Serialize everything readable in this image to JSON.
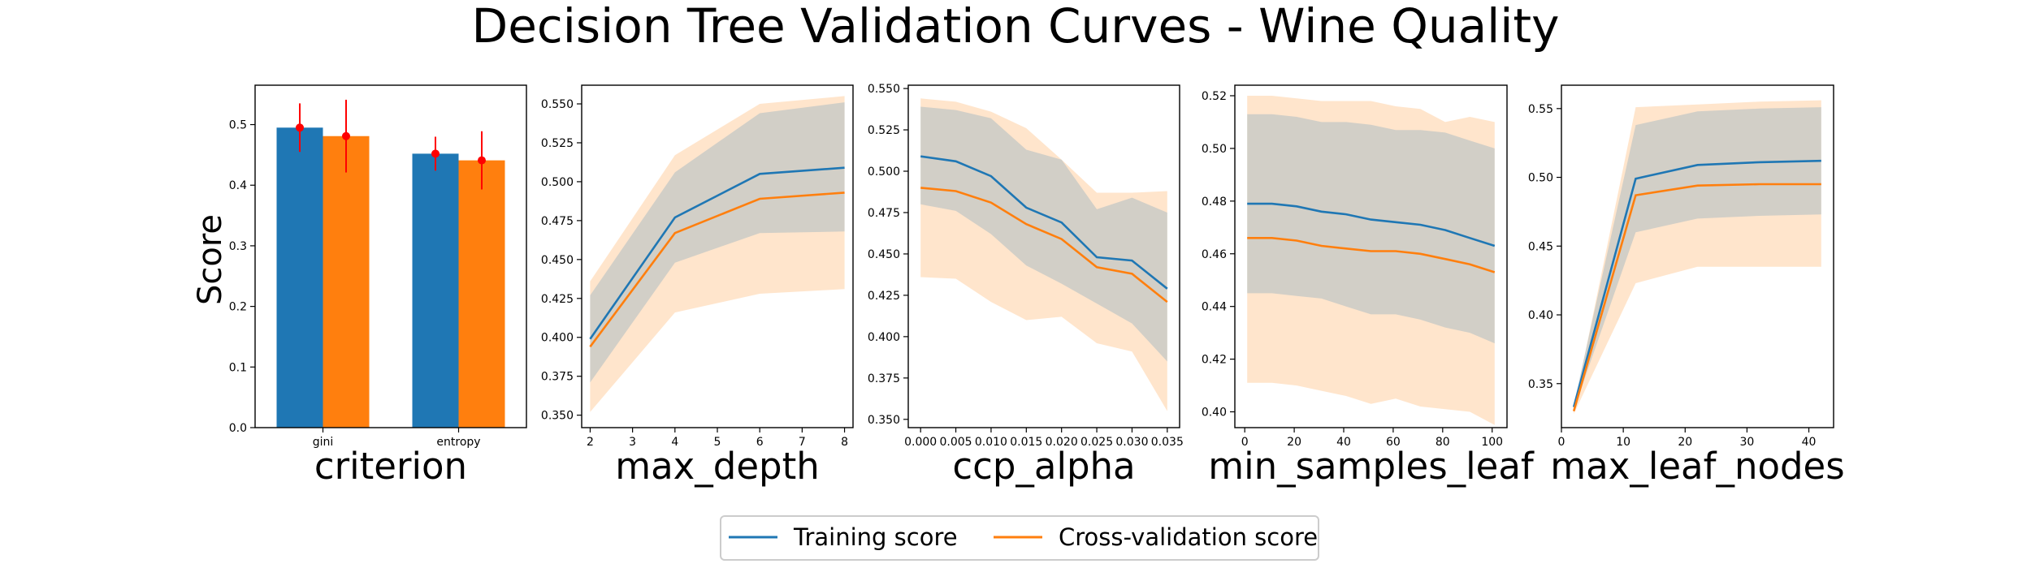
{
  "title": "Decision Tree Validation Curves - Wine Quality",
  "ylabel": "Score",
  "colors": {
    "train": "#1f77b4",
    "cv": "#ff7f0e",
    "train_band": "#1f77b4",
    "cv_band": "#ffbf7f",
    "error": "#ff0000"
  },
  "legend": {
    "train_label": "Training score",
    "cv_label": "Cross-validation score"
  },
  "chart_data": [
    {
      "type": "bar",
      "xlabel": "criterion",
      "categories": [
        "gini",
        "entropy"
      ],
      "series": [
        {
          "name": "Training score",
          "values": [
            0.495,
            0.452
          ],
          "std": [
            0.04,
            0.028
          ]
        },
        {
          "name": "Cross-validation score",
          "values": [
            0.481,
            0.441
          ],
          "std": [
            0.06,
            0.048
          ]
        }
      ],
      "ylim": [
        0,
        0.565
      ],
      "yticks": [
        0.0,
        0.1,
        0.2,
        0.3,
        0.4,
        0.5
      ],
      "ytick_labels": [
        "0.0",
        "0.1",
        "0.2",
        "0.3",
        "0.4",
        "0.5"
      ]
    },
    {
      "type": "line",
      "xlabel": "max_depth",
      "x": [
        2,
        4,
        6,
        8
      ],
      "xlim": [
        1.8,
        8.2
      ],
      "ylim": [
        0.342,
        0.562
      ],
      "xticks": [
        2,
        3,
        4,
        5,
        6,
        7,
        8
      ],
      "xtick_labels": [
        "2",
        "3",
        "4",
        "5",
        "6",
        "7",
        "8"
      ],
      "yticks": [
        0.35,
        0.375,
        0.4,
        0.425,
        0.45,
        0.475,
        0.5,
        0.525,
        0.55
      ],
      "ytick_labels": [
        "0.350",
        "0.375",
        "0.400",
        "0.425",
        "0.450",
        "0.475",
        "0.500",
        "0.525",
        "0.550"
      ],
      "train": {
        "mean": [
          0.399,
          0.477,
          0.505,
          0.509
        ],
        "lower": [
          0.371,
          0.448,
          0.467,
          0.468
        ],
        "upper": [
          0.427,
          0.506,
          0.544,
          0.551
        ]
      },
      "cv": {
        "mean": [
          0.394,
          0.467,
          0.489,
          0.493
        ],
        "lower": [
          0.352,
          0.416,
          0.428,
          0.431
        ],
        "upper": [
          0.436,
          0.517,
          0.55,
          0.555
        ]
      }
    },
    {
      "type": "line",
      "xlabel": "ccp_alpha",
      "x": [
        0.0,
        0.005,
        0.01,
        0.015,
        0.02,
        0.025,
        0.03,
        0.035
      ],
      "xlim": [
        -0.00175,
        0.03675
      ],
      "ylim": [
        0.345,
        0.552
      ],
      "xticks": [
        0.0,
        0.005,
        0.01,
        0.015,
        0.02,
        0.025,
        0.03,
        0.035
      ],
      "xtick_labels": [
        "0.000",
        "0.005",
        "0.010",
        "0.015",
        "0.020",
        "0.025",
        "0.030",
        "0.035"
      ],
      "yticks": [
        0.35,
        0.375,
        0.4,
        0.425,
        0.45,
        0.475,
        0.5,
        0.525,
        0.55
      ],
      "ytick_labels": [
        "0.350",
        "0.375",
        "0.400",
        "0.425",
        "0.450",
        "0.475",
        "0.500",
        "0.525",
        "0.550"
      ],
      "train": {
        "mean": [
          0.509,
          0.506,
          0.497,
          0.478,
          0.469,
          0.448,
          0.446,
          0.429
        ],
        "lower": [
          0.48,
          0.476,
          0.462,
          0.443,
          0.432,
          0.42,
          0.408,
          0.385
        ],
        "upper": [
          0.539,
          0.537,
          0.532,
          0.513,
          0.507,
          0.477,
          0.484,
          0.475
        ]
      },
      "cv": {
        "mean": [
          0.49,
          0.488,
          0.481,
          0.468,
          0.459,
          0.442,
          0.438,
          0.421
        ],
        "lower": [
          0.436,
          0.435,
          0.421,
          0.41,
          0.412,
          0.396,
          0.391,
          0.355
        ],
        "upper": [
          0.544,
          0.542,
          0.536,
          0.526,
          0.507,
          0.487,
          0.487,
          0.488
        ]
      }
    },
    {
      "type": "line",
      "xlabel": "min_samples_leaf",
      "x": [
        1,
        11,
        21,
        31,
        41,
        51,
        61,
        71,
        81,
        91,
        101
      ],
      "xlim": [
        -4.0,
        106.0
      ],
      "ylim": [
        0.394,
        0.524
      ],
      "xticks": [
        0,
        20,
        40,
        60,
        80,
        100
      ],
      "xtick_labels": [
        "0",
        "20",
        "40",
        "60",
        "80",
        "100"
      ],
      "yticks": [
        0.4,
        0.42,
        0.44,
        0.46,
        0.48,
        0.5,
        0.52
      ],
      "ytick_labels": [
        "0.40",
        "0.42",
        "0.44",
        "0.46",
        "0.48",
        "0.50",
        "0.52"
      ],
      "train": {
        "mean": [
          0.479,
          0.479,
          0.478,
          0.476,
          0.475,
          0.473,
          0.472,
          0.471,
          0.469,
          0.466,
          0.463
        ],
        "lower": [
          0.445,
          0.445,
          0.444,
          0.443,
          0.44,
          0.437,
          0.437,
          0.435,
          0.432,
          0.43,
          0.426
        ],
        "upper": [
          0.513,
          0.513,
          0.512,
          0.51,
          0.51,
          0.509,
          0.507,
          0.507,
          0.506,
          0.503,
          0.5
        ]
      },
      "cv": {
        "mean": [
          0.466,
          0.466,
          0.465,
          0.463,
          0.462,
          0.461,
          0.461,
          0.46,
          0.458,
          0.456,
          0.453
        ],
        "lower": [
          0.411,
          0.411,
          0.41,
          0.408,
          0.406,
          0.403,
          0.405,
          0.402,
          0.401,
          0.4,
          0.395
        ],
        "upper": [
          0.52,
          0.52,
          0.519,
          0.518,
          0.518,
          0.518,
          0.516,
          0.515,
          0.51,
          0.512,
          0.51
        ]
      }
    },
    {
      "type": "line",
      "xlabel": "max_leaf_nodes",
      "x": [
        2,
        12,
        22,
        32,
        42
      ],
      "xlim": [
        0.0,
        44.0
      ],
      "ylim": [
        0.318,
        0.567
      ],
      "xticks": [
        0,
        10,
        20,
        30,
        40
      ],
      "xtick_labels": [
        "0",
        "10",
        "20",
        "30",
        "40"
      ],
      "yticks": [
        0.35,
        0.4,
        0.45,
        0.5,
        0.55
      ],
      "ytick_labels": [
        "0.35",
        "0.40",
        "0.45",
        "0.50",
        "0.55"
      ],
      "train": {
        "mean": [
          0.333,
          0.499,
          0.509,
          0.511,
          0.512
        ],
        "lower": [
          0.331,
          0.46,
          0.47,
          0.472,
          0.473
        ],
        "upper": [
          0.335,
          0.538,
          0.548,
          0.55,
          0.551
        ]
      },
      "cv": {
        "mean": [
          0.33,
          0.487,
          0.494,
          0.495,
          0.495
        ],
        "lower": [
          0.328,
          0.423,
          0.435,
          0.435,
          0.435
        ],
        "upper": [
          0.332,
          0.551,
          0.553,
          0.555,
          0.556
        ]
      }
    }
  ]
}
